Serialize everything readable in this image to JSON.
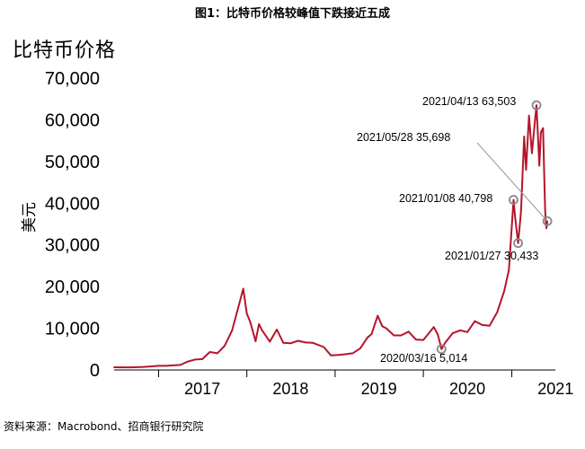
{
  "figure_title": "图1：比特币价格较峰值下跌接近五成",
  "source_note": "资料来源：Macrobond、招商银行研究院",
  "chart_data": {
    "type": "line",
    "title": "比特币价格",
    "ylabel": "美元",
    "xlabel": "",
    "ylim": [
      0,
      70000
    ],
    "yticks": [
      "0",
      "10,000",
      "20,000",
      "30,000",
      "40,000",
      "50,000",
      "60,000",
      "70,000"
    ],
    "ytick_values": [
      0,
      10000,
      20000,
      30000,
      40000,
      50000,
      60000,
      70000
    ],
    "xlim": [
      "2016-07-01",
      "2021-06-30"
    ],
    "xtick_labels": [
      "2017",
      "2018",
      "2019",
      "2020",
      "2021"
    ],
    "xtick_positions": [
      "2017-07-01",
      "2018-07-01",
      "2019-07-01",
      "2020-07-01",
      "2021-07-01"
    ],
    "grid": false,
    "series": [
      {
        "color": "#b5152b",
        "x": [
          "2016-07-01",
          "2016-09-01",
          "2016-11-01",
          "2017-01-01",
          "2017-02-01",
          "2017-03-01",
          "2017-04-01",
          "2017-05-01",
          "2017-06-01",
          "2017-07-01",
          "2017-08-01",
          "2017-09-01",
          "2017-10-01",
          "2017-11-01",
          "2017-12-01",
          "2017-12-17",
          "2018-01-01",
          "2018-01-15",
          "2018-02-06",
          "2018-02-20",
          "2018-03-05",
          "2018-04-06",
          "2018-05-05",
          "2018-06-01",
          "2018-07-01",
          "2018-08-01",
          "2018-09-01",
          "2018-10-01",
          "2018-11-15",
          "2018-12-15",
          "2019-01-15",
          "2019-02-15",
          "2019-03-15",
          "2019-04-15",
          "2019-05-15",
          "2019-06-01",
          "2019-06-26",
          "2019-07-15",
          "2019-08-01",
          "2019-09-01",
          "2019-10-01",
          "2019-11-01",
          "2019-12-01",
          "2020-01-01",
          "2020-02-13",
          "2020-03-01",
          "2020-03-16",
          "2020-04-01",
          "2020-05-01",
          "2020-06-01",
          "2020-07-01",
          "2020-08-01",
          "2020-09-01",
          "2020-10-01",
          "2020-11-01",
          "2020-12-01",
          "2020-12-20",
          "2021-01-08",
          "2021-01-15",
          "2021-01-27",
          "2021-02-08",
          "2021-02-21",
          "2021-03-01",
          "2021-03-13",
          "2021-03-25",
          "2021-04-13",
          "2021-04-25",
          "2021-05-01",
          "2021-05-10",
          "2021-05-15",
          "2021-05-19",
          "2021-05-24",
          "2021-05-28"
        ],
        "y": [
          650,
          620,
          740,
          1000,
          1000,
          1100,
          1200,
          2000,
          2500,
          2600,
          4300,
          4000,
          5800,
          9500,
          16000,
          19500,
          13500,
          11500,
          6900,
          11000,
          9500,
          6800,
          9700,
          6500,
          6400,
          7000,
          6600,
          6500,
          5500,
          3500,
          3600,
          3800,
          4000,
          5200,
          7800,
          8600,
          13000,
          10500,
          10000,
          8300,
          8300,
          9200,
          7300,
          7200,
          10300,
          8500,
          5014,
          6600,
          8800,
          9500,
          9100,
          11700,
          10800,
          10600,
          13800,
          19000,
          24000,
          40798,
          36500,
          30433,
          38000,
          56000,
          48000,
          61000,
          52000,
          63503,
          49000,
          57000,
          58000,
          47000,
          38000,
          34000,
          35698
        ]
      }
    ],
    "annotations": [
      {
        "label": "2021/04/13 63,503",
        "x": "2021-04-13",
        "y": 63503
      },
      {
        "label": "2021/05/28 35,698",
        "x": "2021-05-28",
        "y": 35698
      },
      {
        "label": "2021/01/08 40,798",
        "x": "2021-01-08",
        "y": 40798
      },
      {
        "label": "2021/01/27 30,433",
        "x": "2021-01-27",
        "y": 30433
      },
      {
        "label": "2020/03/16 5,014",
        "x": "2020-03-16",
        "y": 5014
      }
    ]
  }
}
